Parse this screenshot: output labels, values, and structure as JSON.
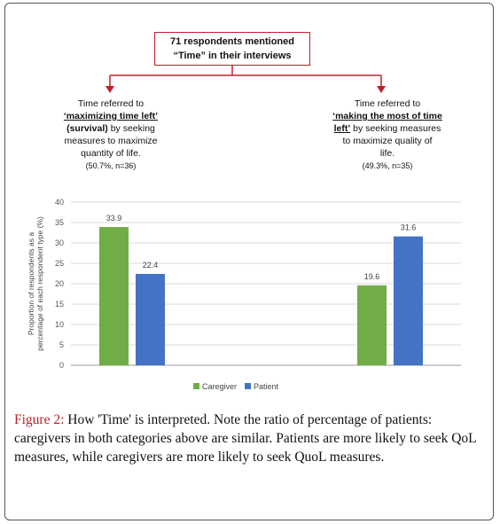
{
  "flow": {
    "root": {
      "line1": "71 respondents mentioned",
      "line2": "“Time” in their interviews"
    },
    "left": {
      "line1": "Time referred to",
      "line2_u": "‘maximizing time left’",
      "line3_b": "(survival)",
      "line3_rest": " by seeking",
      "line4": "measures to maximize",
      "line5": "quantity of life.",
      "stat": "(50.7%, n=36)"
    },
    "right": {
      "line1": "Time referred to",
      "line2_u": "‘making the most of time",
      "line3_b": "left’",
      "line3_rest": " by seeking measures",
      "line4": "to maximize quality of",
      "line5": "life.",
      "stat": "(49.3%, n=35)"
    },
    "arrow_color": "#c0202a"
  },
  "chart_data": {
    "type": "bar",
    "categories": [
      "maximizing time left",
      "making the most of time left"
    ],
    "series": [
      {
        "name": "Caregiver",
        "values": [
          33.9,
          19.6
        ],
        "color": "#70ad47"
      },
      {
        "name": "Patient",
        "values": [
          22.4,
          31.6
        ],
        "color": "#4472c4"
      }
    ],
    "value_labels": [
      "33.9",
      "22.4",
      "19.6",
      "31.6"
    ],
    "ylabel_line1": "Proportion of respondents as a",
    "ylabel_line2": "percentage of each respondent type (%)",
    "ylim": [
      0,
      40
    ],
    "yticks": [
      "0",
      "5",
      "10",
      "15",
      "20",
      "25",
      "30",
      "35",
      "40"
    ],
    "grid": true,
    "legend_position": "bottom"
  },
  "caption": {
    "label": "Figure 2:",
    "text": " How 'Time' is interpreted. Note the ratio of percentage of patients: caregivers in both categories above are similar. Patients are more likely to seek QoL measures, while caregivers are more likely to seek QuoL measures."
  }
}
